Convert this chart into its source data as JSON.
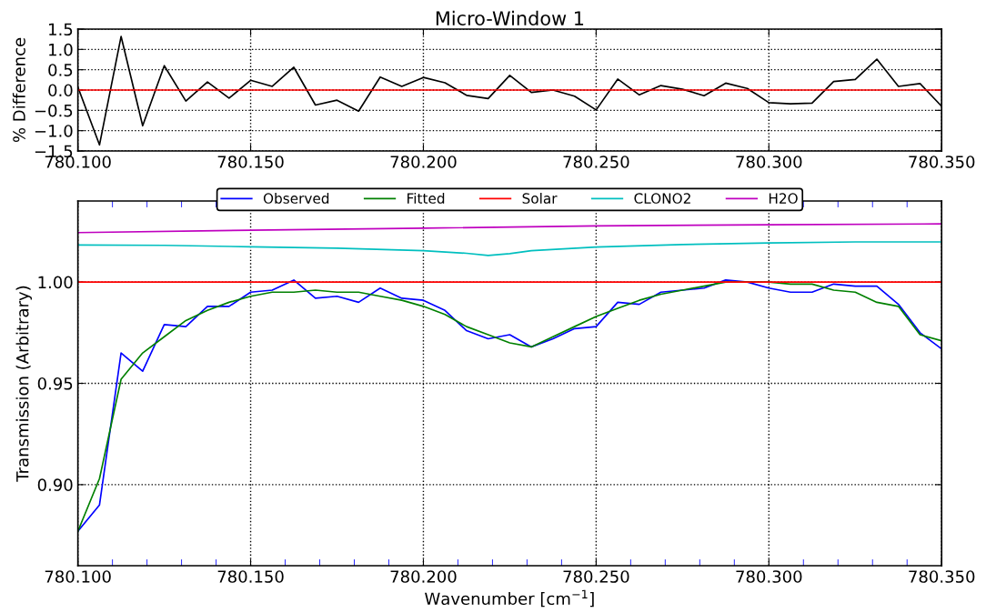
{
  "chart_data": [
    {
      "type": "line",
      "title": "Micro-Window 1",
      "ylabel": "% Difference",
      "grid": true,
      "xlim": [
        780.1,
        780.35
      ],
      "xticks": [
        {
          "value": 780.1,
          "label": "780.100"
        },
        {
          "value": 780.15,
          "label": "780.150"
        },
        {
          "value": 780.2,
          "label": "780.200"
        },
        {
          "value": 780.25,
          "label": "780.250"
        },
        {
          "value": 780.3,
          "label": "780.300"
        },
        {
          "value": 780.35,
          "label": "780.350"
        }
      ],
      "ylim": [
        -1.5,
        1.5
      ],
      "yticks": [
        {
          "value": -1.5,
          "label": "−1.5"
        },
        {
          "value": -1.0,
          "label": "−1.0"
        },
        {
          "value": -0.5,
          "label": "−0.5"
        },
        {
          "value": 0.0,
          "label": "0.0"
        },
        0.5,
        {
          "value": 1.0,
          "label": "1.0"
        },
        1.5
      ],
      "x": [
        780.1,
        780.10625,
        780.1125,
        780.11875,
        780.125,
        780.13125,
        780.1375,
        780.14375,
        780.15,
        780.15625,
        780.1625,
        780.16875,
        780.175,
        780.18125,
        780.1875,
        780.19375,
        780.2,
        780.20625,
        780.2125,
        780.21875,
        780.225,
        780.23125,
        780.2375,
        780.24375,
        780.25,
        780.25625,
        780.2625,
        780.26875,
        780.275,
        780.28125,
        780.2875,
        780.29375,
        780.3,
        780.30625,
        780.3125,
        780.31875,
        780.325,
        780.33125,
        780.3375,
        780.34375,
        780.35
      ],
      "series": [
        {
          "color": "#000000",
          "values": [
            0.07,
            -1.35,
            1.32,
            -0.88,
            0.6,
            -0.27,
            0.2,
            -0.2,
            0.24,
            0.09,
            0.56,
            -0.37,
            -0.25,
            -0.52,
            0.32,
            0.09,
            0.31,
            0.18,
            -0.13,
            -0.21,
            0.36,
            -0.06,
            0.0,
            -0.15,
            -0.49,
            0.27,
            -0.12,
            0.11,
            0.02,
            -0.14,
            0.17,
            0.04,
            -0.31,
            -0.34,
            -0.32,
            0.21,
            0.26,
            0.76,
            0.09,
            0.16,
            -0.4
          ]
        }
      ],
      "ref_lines": [
        {
          "axis": "y",
          "value": 0.0,
          "color": "#ff0000"
        }
      ]
    },
    {
      "type": "line",
      "xlabel": "Wavenumber [cm$^{−1}$]",
      "ylabel": "Transmission (Arbitrary)",
      "grid": true,
      "legend": "top",
      "xlim": [
        780.1,
        780.35
      ],
      "xticks": [
        {
          "value": 780.1,
          "label": "780.100"
        },
        {
          "value": 780.11,
          "label": null
        },
        {
          "value": 780.12,
          "label": null
        },
        {
          "value": 780.13,
          "label": null
        },
        {
          "value": 780.14,
          "label": null
        },
        {
          "value": 780.15,
          "label": "780.150"
        },
        {
          "value": 780.16,
          "label": null
        },
        {
          "value": 780.17,
          "label": null
        },
        {
          "value": 780.18,
          "label": null
        },
        {
          "value": 780.19,
          "label": null
        },
        {
          "value": 780.2,
          "label": "780.200"
        },
        {
          "value": 780.21,
          "label": null
        },
        {
          "value": 780.22,
          "label": null
        },
        {
          "value": 780.23,
          "label": null
        },
        {
          "value": 780.24,
          "label": null
        },
        {
          "value": 780.25,
          "label": "780.250"
        },
        {
          "value": 780.26,
          "label": null
        },
        {
          "value": 780.27,
          "label": null
        },
        {
          "value": 780.28,
          "label": null
        },
        {
          "value": 780.29,
          "label": null
        },
        {
          "value": 780.3,
          "label": "780.300"
        },
        {
          "value": 780.31,
          "label": null
        },
        {
          "value": 780.32,
          "label": null
        },
        {
          "value": 780.33,
          "label": null
        },
        {
          "value": 780.34,
          "label": null
        },
        {
          "value": 780.35,
          "label": "780.350"
        }
      ],
      "ylim": [
        0.86,
        1.04
      ],
      "yticks": [
        {
          "value": 0.9,
          "label": "0.90"
        },
        {
          "value": 0.95,
          "label": "0.95"
        },
        {
          "value": 1.0,
          "label": "1.00"
        }
      ],
      "x": [
        780.1,
        780.10625,
        780.1125,
        780.11875,
        780.125,
        780.13125,
        780.1375,
        780.14375,
        780.15,
        780.15625,
        780.1625,
        780.16875,
        780.175,
        780.18125,
        780.1875,
        780.19375,
        780.2,
        780.20625,
        780.2125,
        780.21875,
        780.225,
        780.23125,
        780.2375,
        780.24375,
        780.25,
        780.25625,
        780.2625,
        780.26875,
        780.275,
        780.28125,
        780.2875,
        780.29375,
        780.3,
        780.30625,
        780.3125,
        780.31875,
        780.325,
        780.33125,
        780.3375,
        780.34375,
        780.35
      ],
      "series": [
        {
          "name": "Observed",
          "color": "#0000ff",
          "values": [
            0.877,
            0.89,
            0.965,
            0.956,
            0.979,
            0.978,
            0.988,
            0.988,
            0.995,
            0.996,
            1.001,
            0.992,
            0.993,
            0.99,
            0.997,
            0.992,
            0.991,
            0.986,
            0.976,
            0.972,
            0.974,
            0.968,
            0.972,
            0.977,
            0.978,
            0.99,
            0.989,
            0.995,
            0.996,
            0.997,
            1.001,
            1.0,
            0.997,
            0.995,
            0.995,
            0.999,
            0.998,
            0.998,
            0.989,
            0.975,
            0.967
          ]
        },
        {
          "name": "Fitted",
          "color": "#008000",
          "values": [
            0.877,
            0.903,
            0.952,
            0.965,
            0.973,
            0.981,
            0.986,
            0.99,
            0.993,
            0.995,
            0.995,
            0.996,
            0.995,
            0.995,
            0.993,
            0.991,
            0.988,
            0.984,
            0.978,
            0.974,
            0.97,
            0.968,
            0.973,
            0.978,
            0.983,
            0.987,
            0.991,
            0.994,
            0.996,
            0.998,
            1.0,
            1.0,
            1.0,
            0.999,
            0.999,
            0.996,
            0.995,
            0.99,
            0.988,
            0.974,
            0.971
          ]
        },
        {
          "name": "Solar",
          "color": "#ff0000",
          "x": [
            780.1,
            780.35
          ],
          "values": [
            1.0,
            1.0
          ]
        },
        {
          "name": "CLONO2",
          "color": "#00bfbf",
          "x": [
            780.1,
            780.125,
            780.15,
            780.175,
            780.2,
            780.2125,
            780.21875,
            780.225,
            780.23125,
            780.25,
            780.275,
            780.3,
            780.325,
            780.35
          ],
          "values": [
            1.0183,
            1.0181,
            1.0174,
            1.0167,
            1.0155,
            1.0142,
            1.0131,
            1.014,
            1.0155,
            1.0173,
            1.0185,
            1.0193,
            1.0198,
            1.0198
          ]
        },
        {
          "name": "H2O",
          "color": "#bf00bf",
          "x": [
            780.1,
            780.15,
            780.2,
            780.25,
            780.3,
            780.35
          ],
          "values": [
            1.0244,
            1.0256,
            1.0266,
            1.0277,
            1.0283,
            1.0287
          ]
        }
      ]
    }
  ]
}
